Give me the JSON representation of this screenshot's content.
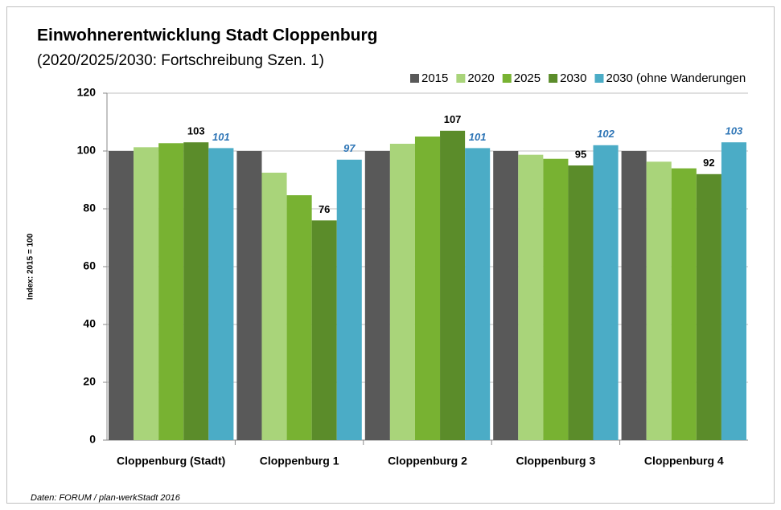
{
  "chart_data": {
    "type": "bar",
    "title": "Einwohnerentwicklung Stadt Cloppenburg",
    "subtitle": "(2020/2025/2030: Fortschreibung Szen. 1)",
    "y_label": "Index: 2015 = 100",
    "source": "Daten:  FORUM / plan-werkStadt 2016",
    "categories": [
      "Cloppenburg (Stadt)",
      "Cloppenburg 1",
      "Cloppenburg 2",
      "Cloppenburg 3",
      "Cloppenburg 4"
    ],
    "series": [
      {
        "name": "2015",
        "color": "#595959",
        "values": [
          100,
          100,
          100,
          100,
          100
        ]
      },
      {
        "name": "2020",
        "color": "#a9d47a",
        "values": [
          101.3,
          92.5,
          102.5,
          98.7,
          96.3
        ]
      },
      {
        "name": "2025",
        "color": "#78b232",
        "values": [
          102.7,
          84.7,
          105,
          97.3,
          94
        ]
      },
      {
        "name": "2030",
        "color": "#5b8c2a",
        "values": [
          103,
          76,
          107,
          95,
          92
        ],
        "show_labels": true,
        "label_color": "#000000"
      },
      {
        "name": "2030 (ohne Wanderungen",
        "color": "#4bacc6",
        "values": [
          101,
          97,
          101,
          102,
          103
        ],
        "show_labels": true,
        "label_color": "#2e75b6"
      }
    ],
    "ylim": [
      0,
      120
    ],
    "yticks": [
      0,
      20,
      40,
      60,
      80,
      100,
      120
    ],
    "grid": true,
    "legend": "top-right"
  }
}
